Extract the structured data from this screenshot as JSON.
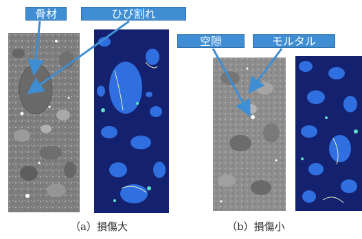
{
  "labels": {
    "aggregate": "骨材",
    "crack": "ひび割れ",
    "void": "空隙",
    "mortar": "モルタル"
  },
  "captions": {
    "a": "（a）損傷大",
    "b": "（b）損傷小"
  },
  "colors": {
    "label_fill": "#3f8ed4",
    "label_border": "#2e6fa9",
    "arrow": "#3f8ed4",
    "ct_background": "#8a8a8a",
    "segment_background": "#14216e",
    "segment_aggregate": "#2f6fe0",
    "segment_void": "#5fe3c8",
    "segment_crack": "#e8f0c8"
  }
}
